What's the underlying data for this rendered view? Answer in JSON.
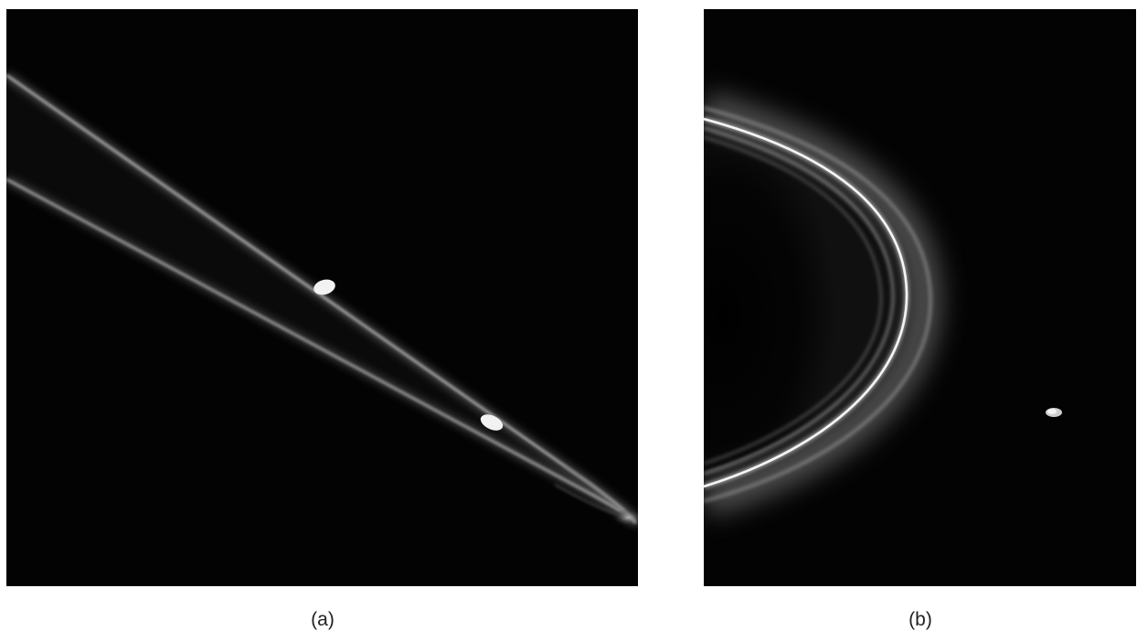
{
  "figure": {
    "panels": [
      {
        "id": "a",
        "caption": "(a)"
      },
      {
        "id": "b",
        "caption": "(b)"
      }
    ],
    "colors": {
      "background": "#ffffff",
      "space": "#030303",
      "ring": "#d8d8d8",
      "moon": "#f2f2f2"
    }
  }
}
